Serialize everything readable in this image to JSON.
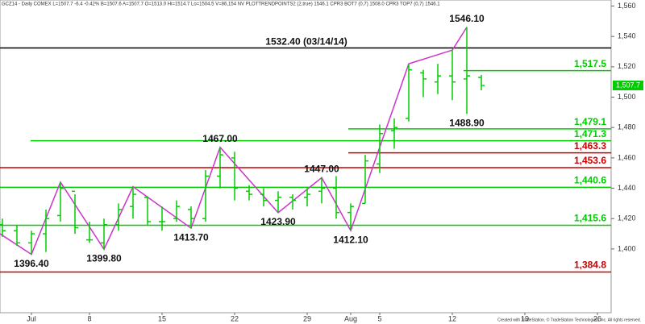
{
  "chart_data": {
    "type": "ohlc",
    "header": "GCZ14 - Daily COMEX  L=1507.7 -6.4 -0.42%  B=1507.6  A=1507.7  O=1513.0  Hi=1514.7  Lo=1504.5  V=86,154  NV  PLOTTRENDPOINTS2 (2,true)  1546.1  CPR3 BOT7 (0,7)  1508.0  CPR3 TOP7 (0,7)  1546.1",
    "footer": "Created with TradeStation. © TradeStation Technologies, Inc. All rights reserved.",
    "color": "#00cc00",
    "categories": [
      null,
      null,
      "Jul",
      null,
      null,
      null,
      "8",
      null,
      null,
      null,
      null,
      "15",
      null,
      null,
      null,
      null,
      "22",
      null,
      null,
      null,
      null,
      "29",
      null,
      null,
      "Aug",
      null,
      "5",
      null,
      null,
      null,
      null,
      "12",
      null,
      null,
      null,
      null,
      "19",
      null,
      null,
      null,
      null,
      "26",
      null
    ],
    "open": [
      1416,
      1412,
      1404,
      1410,
      1422,
      1438,
      1406,
      1404,
      1416,
      1428,
      1434,
      1418,
      1420,
      1426,
      1420,
      1448,
      1460,
      1438,
      1436,
      1432,
      1434,
      1434,
      1438,
      1440,
      1424,
      1430,
      1456,
      1478,
      1486,
      1516,
      1510,
      1514,
      1512,
      1513,
      null,
      null,
      null,
      null,
      null,
      null,
      null,
      null,
      null
    ],
    "high": [
      1420,
      1416,
      1412,
      1426,
      1444,
      1436,
      1418,
      1420,
      1430,
      1441,
      1434,
      1428,
      1432,
      1428,
      1452,
      1467,
      1464,
      1442,
      1440,
      1438,
      1436,
      1440,
      1447,
      1448,
      1430,
      1462,
      1482,
      1486,
      1522,
      1518,
      1522,
      1531,
      1546.1,
      1514.7,
      null,
      null,
      null,
      null,
      null,
      null,
      null,
      null,
      null
    ],
    "low": [
      1408,
      1402,
      1396.4,
      1398,
      1418,
      1410,
      1404,
      1399.8,
      1412,
      1420,
      1416,
      1412,
      1418,
      1413.7,
      1418,
      1440,
      1432,
      1432,
      1428,
      1423.9,
      1426,
      1428,
      1430,
      1420,
      1412.1,
      1430,
      1450,
      1466,
      1484,
      1500,
      1502,
      1498,
      1488.9,
      1504.5,
      null,
      null,
      null,
      null,
      null,
      null,
      null,
      null,
      null
    ],
    "close": [
      1412,
      1404,
      1410,
      1420,
      1440,
      1414,
      1406,
      1416,
      1426,
      1436,
      1418,
      1418,
      1428,
      1420,
      1448,
      1462,
      1440,
      1436,
      1432,
      1434,
      1432,
      1436,
      1440,
      1424,
      1428,
      1458,
      1476,
      1480,
      1518,
      1512,
      1514,
      1510,
      1514,
      1507.7,
      null,
      null,
      null,
      null,
      null,
      null,
      null,
      null,
      null
    ],
    "high_labels": [
      null,
      null,
      null,
      null,
      null,
      null,
      null,
      null,
      null,
      null,
      null,
      null,
      null,
      null,
      null,
      "1467.00",
      null,
      null,
      null,
      null,
      null,
      null,
      "1447.00",
      null,
      null,
      null,
      null,
      null,
      null,
      null,
      null,
      null,
      "1546.10",
      null,
      null,
      null,
      null,
      null,
      null,
      null,
      null,
      null,
      null
    ],
    "low_labels": [
      null,
      null,
      "1396.40",
      null,
      null,
      null,
      null,
      "1399.80",
      null,
      null,
      null,
      null,
      null,
      "1413.70",
      null,
      null,
      null,
      null,
      null,
      "1423.90",
      null,
      null,
      null,
      null,
      "1412.10",
      null,
      null,
      null,
      null,
      null,
      null,
      null,
      "1488.90",
      null,
      null,
      null,
      null,
      null,
      null,
      null,
      null,
      null,
      null
    ],
    "swing": {
      "color": "#cc33cc",
      "x": [
        0,
        2,
        4,
        7,
        9,
        13,
        15,
        19,
        22,
        24,
        28,
        31,
        32
      ],
      "values": [
        1410,
        1396.4,
        1444,
        1399.8,
        1441,
        1413.7,
        1467,
        1423.9,
        1447,
        1412.1,
        1522,
        1531,
        1546.1
      ]
    },
    "levels": [
      {
        "value": 1532.4,
        "label": "1532.40 (03/14/14)",
        "color": "#000000"
      },
      {
        "value": 1517.5,
        "label": "1,517.5",
        "color": "#00cc00"
      },
      {
        "value": 1479.1,
        "label": "1,479.1",
        "color": "#00cc00"
      },
      {
        "value": 1471.3,
        "label": "1,471.3",
        "color": "#00cc00"
      },
      {
        "value": 1463.3,
        "label": "1,463.3",
        "color": "#cc0000"
      },
      {
        "value": 1453.6,
        "label": "1,453.6",
        "color": "#cc0000"
      },
      {
        "value": 1440.6,
        "label": "1,440.6",
        "color": "#00cc00"
      },
      {
        "value": 1415.6,
        "label": "1,415.6",
        "color": "#00cc00"
      },
      {
        "value": 1384.8,
        "label": "1,384.8",
        "color": "#cc0000"
      }
    ],
    "last": {
      "value": 1507.7,
      "label": "1,507.7"
    },
    "ylim": [
      1358,
      1564
    ],
    "yticks": [
      {
        "value": 1400,
        "label": "1,400"
      },
      {
        "value": 1420,
        "label": "1,420"
      },
      {
        "value": 1440,
        "label": "1,440"
      },
      {
        "value": 1460,
        "label": "1,460"
      },
      {
        "value": 1480,
        "label": "1,480"
      },
      {
        "value": 1500,
        "label": "1,500"
      },
      {
        "value": 1520,
        "label": "1,520"
      },
      {
        "value": 1540,
        "label": "1,540"
      },
      {
        "value": 1560,
        "label": "1,560"
      }
    ]
  }
}
